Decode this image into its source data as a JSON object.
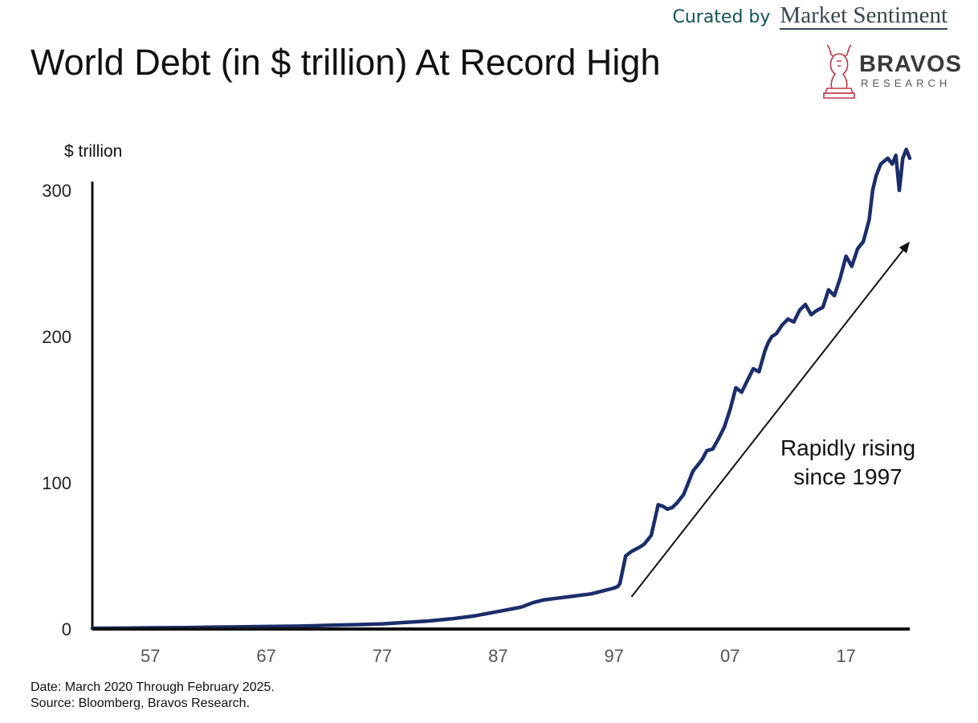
{
  "header": {
    "curated_by": "Curated by",
    "curator_brand": "Market Sentiment",
    "logo_word": "BRAVOS",
    "logo_sub": "RESEARCH"
  },
  "chart_data": {
    "type": "line",
    "title": "World Debt (in $ trillion) At Record High",
    "ylabel": "$ trillion",
    "xlabel": "",
    "ylim": [
      0,
      300
    ],
    "xlim": [
      1952,
      2022.5
    ],
    "y_ticks": [
      "0",
      "100",
      "200",
      "300"
    ],
    "x_ticks": [
      {
        "label": "57",
        "year": 1957
      },
      {
        "label": "67",
        "year": 1967
      },
      {
        "label": "77",
        "year": 1977
      },
      {
        "label": "87",
        "year": 1987
      },
      {
        "label": "97",
        "year": 1997
      },
      {
        "label": "07",
        "year": 2007
      },
      {
        "label": "17",
        "year": 2017
      }
    ],
    "grid": false,
    "legend": "none",
    "series_color": "#1b2d6b",
    "annotation": {
      "lines": [
        "Rapidly rising",
        "since 1997"
      ],
      "arrow_from": [
        1998.5,
        22
      ],
      "arrow_to": [
        2022.5,
        265
      ]
    },
    "series": [
      {
        "x": [
          1952,
          1955,
          1957,
          1960,
          1962,
          1965,
          1967,
          1970,
          1972,
          1975,
          1977,
          1979,
          1981,
          1983,
          1985,
          1987,
          1989,
          1990,
          1991,
          1992,
          1993,
          1994,
          1995,
          1996,
          1997,
          1997.3,
          1997.5,
          1998,
          1998.5,
          1999.2,
          1999.6,
          2000.2,
          2000.8,
          2001.2,
          2001.6,
          2002,
          2002.4,
          2003,
          2003.4,
          2003.8,
          2004.2,
          2004.6,
          2005,
          2005.5,
          2006,
          2006.5,
          2007,
          2007.5,
          2008,
          2008.5,
          2009,
          2009.5,
          2010,
          2010.3,
          2010.6,
          2011,
          2011.5,
          2012,
          2012.5,
          2013,
          2013.5,
          2014,
          2014.5,
          2015,
          2015.5,
          2016,
          2016.5,
          2017,
          2017.5,
          2018,
          2018.5,
          2019,
          2019.3,
          2019.6,
          2020,
          2020.3,
          2020.6,
          2021,
          2021.3,
          2021.6,
          2021.9,
          2022.2,
          2022.5
        ],
        "y": [
          0.5,
          0.6,
          0.8,
          1,
          1.2,
          1.5,
          1.7,
          2,
          2.5,
          3,
          3.5,
          4.5,
          5.5,
          7,
          9,
          12,
          15,
          18,
          20,
          21,
          22,
          23,
          24,
          26,
          28,
          29,
          31,
          50,
          53,
          56,
          58,
          64,
          85,
          84,
          82,
          83,
          86,
          92,
          100,
          108,
          112,
          116,
          122,
          123,
          130,
          138,
          150,
          165,
          162,
          170,
          178,
          176,
          190,
          196,
          200,
          202,
          208,
          212,
          210,
          218,
          222,
          215,
          218,
          220,
          232,
          228,
          240,
          255,
          248,
          260,
          265,
          280,
          300,
          310,
          318,
          320,
          322,
          318,
          324,
          300,
          322,
          328,
          322
        ]
      }
    ]
  },
  "footer": {
    "date_note": "Date: March 2020 Through February 2025.",
    "source": "Source: Bloomberg, Bravos Research."
  }
}
